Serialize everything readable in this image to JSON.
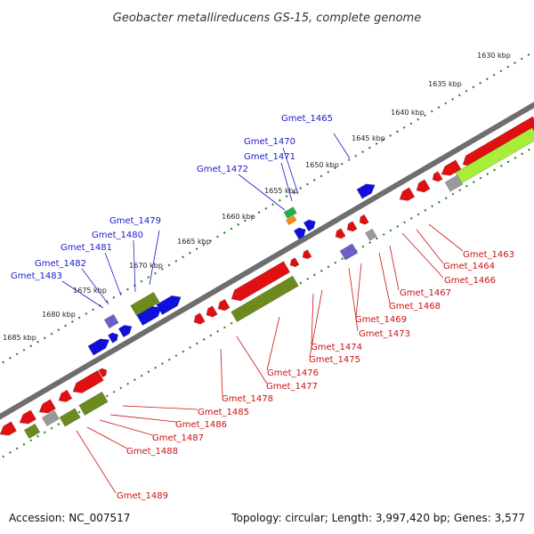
{
  "title": "Geobacter metallireducens GS-15, complete genome",
  "footer": {
    "accession": "Accession: NC_007517",
    "summary": "Topology: circular; Length: 3,997,420 bp; Genes: 3,577"
  },
  "colors": {
    "forward_label": "#1a1acc",
    "reverse_label": "#cc1111",
    "backbone": "#6e6e6e",
    "tick": "#1f7a1f",
    "gene_red": "#e01010",
    "gene_blue": "#1010dd",
    "gene_olive": "#6d8a1f",
    "gene_lime": "#a6ee3a",
    "gene_grey": "#9a9a9a",
    "gene_purple": "#6a5fc7",
    "gene_orange": "#ff8a00",
    "gene_green": "#22b04a"
  },
  "ticks": [
    "1630 kbp",
    "1635 kbp",
    "1640 kbp",
    "1645 kbp",
    "1650 kbp",
    "1655 kbp",
    "1660 kbp",
    "1665 kbp",
    "1670 kbp",
    "1675 kbp",
    "1680 kbp",
    "1685 kbp"
  ],
  "forward_labels": [
    "Gmet_1465",
    "Gmet_1470",
    "Gmet_1471",
    "Gmet_1472",
    "Gmet_1479",
    "Gmet_1480",
    "Gmet_1481",
    "Gmet_1482",
    "Gmet_1483"
  ],
  "reverse_labels": [
    "Gmet_1463",
    "Gmet_1464",
    "Gmet_1466",
    "Gmet_1467",
    "Gmet_1468",
    "Gmet_1469",
    "Gmet_1473",
    "Gmet_1474",
    "Gmet_1475",
    "Gmet_1476",
    "Gmet_1477",
    "Gmet_1478",
    "Gmet_1485",
    "Gmet_1486",
    "Gmet_1487",
    "Gmet_1488",
    "Gmet_1489"
  ]
}
